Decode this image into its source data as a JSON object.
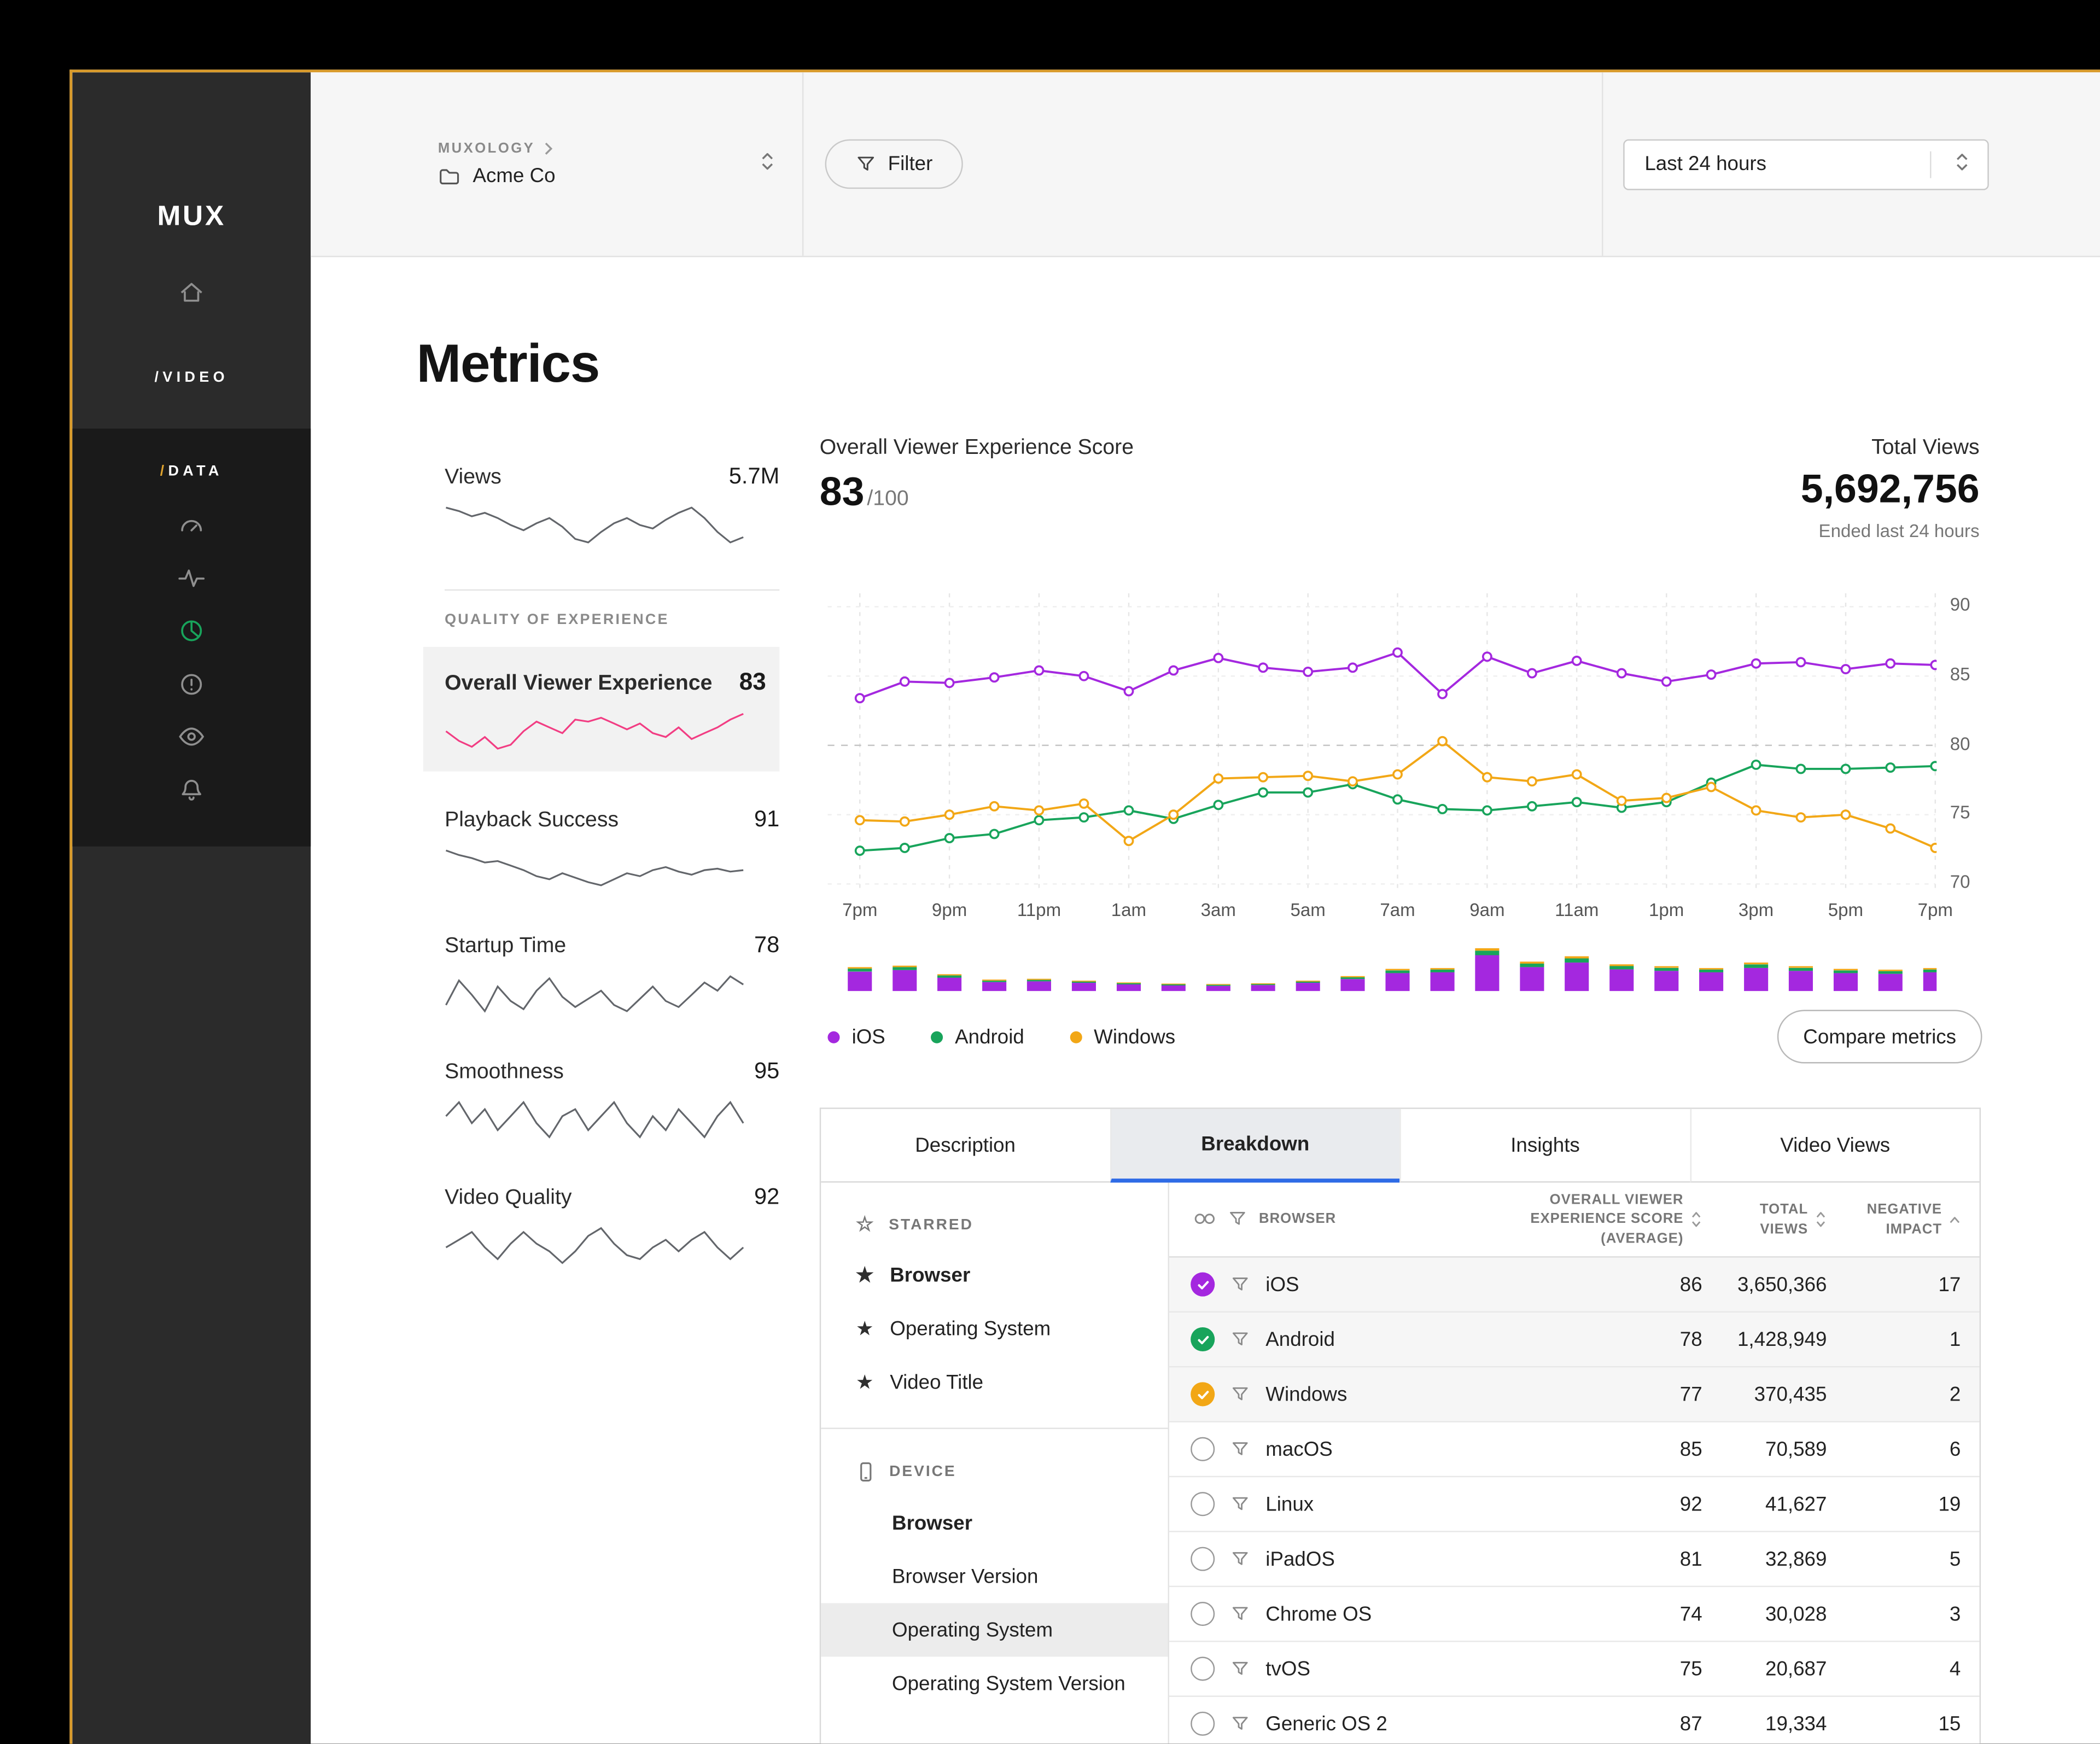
{
  "colors": {
    "orange": "#D99B2B",
    "purple": "#A428DF",
    "green": "#18A45B",
    "yellow": "#F2A716",
    "pink": "#F23D83",
    "blue": "#2E6BE6",
    "spark_gray": "#63666B"
  },
  "brand": {
    "logo": "MUX"
  },
  "sidebar": {
    "video": "/VIDEO",
    "data_slash": "/",
    "data_text": "DATA"
  },
  "header": {
    "breadcrumb": "MUXOLOGY",
    "org": "Acme Co",
    "filter": "Filter",
    "time_range": "Last 24 hours"
  },
  "page_title": "Metrics",
  "metrics": {
    "views": {
      "label": "Views",
      "value": "5.7M",
      "spark": [
        56,
        54,
        51,
        53,
        50,
        46,
        43,
        47,
        50,
        45,
        38,
        36,
        42,
        47,
        50,
        46,
        44,
        49,
        53,
        56,
        50,
        42,
        36,
        39
      ]
    },
    "qoe_header": "QUALITY OF EXPERIENCE",
    "items": [
      {
        "label": "Overall Viewer Experience",
        "value": "83",
        "selected": true,
        "spark": [
          38,
          33,
          30,
          35,
          29,
          31,
          38,
          43,
          40,
          37,
          44,
          43,
          45,
          42,
          39,
          42,
          37,
          35,
          40,
          34,
          37,
          40,
          44,
          47
        ]
      },
      {
        "label": "Playback Success",
        "value": "91",
        "spark": [
          54,
          51,
          49,
          46,
          47,
          44,
          41,
          37,
          35,
          39,
          36,
          33,
          31,
          35,
          39,
          37,
          41,
          43,
          40,
          38,
          41,
          42,
          40,
          41
        ]
      },
      {
        "label": "Startup Time",
        "value": "78",
        "spark": [
          32,
          44,
          37,
          29,
          41,
          34,
          30,
          39,
          45,
          36,
          31,
          35,
          39,
          32,
          29,
          35,
          41,
          34,
          31,
          37,
          43,
          39,
          46,
          42
        ]
      },
      {
        "label": "Smoothness",
        "value": "95",
        "spark": [
          45,
          47,
          44,
          46,
          43,
          45,
          47,
          44,
          42,
          45,
          46,
          43,
          45,
          47,
          44,
          42,
          45,
          43,
          46,
          44,
          42,
          45,
          47,
          44
        ]
      },
      {
        "label": "Video Quality",
        "value": "92",
        "spark": [
          41,
          43,
          45,
          41,
          38,
          42,
          45,
          42,
          40,
          37,
          40,
          44,
          46,
          42,
          39,
          38,
          41,
          43,
          40,
          43,
          45,
          41,
          38,
          41
        ]
      }
    ]
  },
  "chart_header": {
    "score_label": "Overall Viewer Experience Score",
    "score_value": "83",
    "score_denom": "/100",
    "total_views_label": "Total Views",
    "total_views_value": "5,692,756",
    "total_views_sub": "Ended last 24 hours"
  },
  "chart_data": {
    "type": "line",
    "title": "Overall Viewer Experience Score",
    "x_ticks": [
      "7pm",
      "9pm",
      "11pm",
      "1am",
      "3am",
      "5am",
      "7am",
      "9am",
      "11am",
      "1pm",
      "3pm",
      "5pm",
      "7pm"
    ],
    "ylim": [
      70,
      90
    ],
    "y_ticks": [
      90,
      85,
      80,
      75,
      70
    ],
    "reference_line": 80,
    "legend_position": "bottom",
    "series": [
      {
        "name": "iOS",
        "color": "#A428DF",
        "values": [
          83.4,
          84.6,
          84.5,
          84.9,
          85.4,
          85.0,
          83.9,
          85.4,
          86.3,
          85.6,
          85.3,
          85.6,
          86.7,
          83.7,
          86.4,
          85.2,
          86.1,
          85.2,
          84.6,
          85.1,
          85.9,
          86.0,
          85.5,
          85.9,
          85.8
        ]
      },
      {
        "name": "Android",
        "color": "#18A45B",
        "values": [
          72.4,
          72.6,
          73.3,
          73.6,
          74.6,
          74.8,
          75.3,
          74.7,
          75.7,
          76.6,
          76.6,
          77.2,
          76.1,
          75.4,
          75.3,
          75.6,
          75.9,
          75.5,
          75.9,
          77.3,
          78.6,
          78.3,
          78.3,
          78.4,
          78.5
        ]
      },
      {
        "name": "Windows",
        "color": "#F2A716",
        "values": [
          74.6,
          74.5,
          75.0,
          75.6,
          75.3,
          75.8,
          73.1,
          75.0,
          77.6,
          77.7,
          77.8,
          77.4,
          77.9,
          80.3,
          77.7,
          77.4,
          77.9,
          76.0,
          76.2,
          77.0,
          75.3,
          74.8,
          75.0,
          74.0,
          72.6
        ]
      }
    ],
    "volume_bars": {
      "order": [
        "iOS",
        "Android",
        "Windows"
      ],
      "values": [
        [
          13,
          2,
          1
        ],
        [
          14,
          2,
          1
        ],
        [
          9,
          1.5,
          0.8
        ],
        [
          6,
          1,
          0.7
        ],
        [
          6.5,
          1,
          0.7
        ],
        [
          5.5,
          0.9,
          0.6
        ],
        [
          4.5,
          0.8,
          0.5
        ],
        [
          3.8,
          0.7,
          0.5
        ],
        [
          3.5,
          0.7,
          0.5
        ],
        [
          4,
          0.7,
          0.5
        ],
        [
          5.5,
          0.9,
          0.6
        ],
        [
          8,
          1.2,
          0.8
        ],
        [
          12,
          1.8,
          1
        ],
        [
          12.5,
          1.9,
          1
        ],
        [
          24,
          3,
          1.6
        ],
        [
          16,
          2.4,
          1.3
        ],
        [
          19,
          2.8,
          1.4
        ],
        [
          14.5,
          2.2,
          1.2
        ],
        [
          13.5,
          2,
          1.1
        ],
        [
          12.5,
          1.9,
          1
        ],
        [
          15.5,
          2.3,
          1.2
        ],
        [
          13.5,
          2,
          1.1
        ],
        [
          12,
          1.8,
          1
        ],
        [
          11.5,
          1.8,
          1
        ],
        [
          12.5,
          1.9,
          1
        ]
      ]
    }
  },
  "legend": [
    {
      "label": "iOS",
      "color": "#A428DF"
    },
    {
      "label": "Android",
      "color": "#18A45B"
    },
    {
      "label": "Windows",
      "color": "#F2A716"
    }
  ],
  "compare_button": "Compare metrics",
  "tabs": [
    {
      "label": "Description"
    },
    {
      "label": "Breakdown",
      "active": true
    },
    {
      "label": "Insights"
    },
    {
      "label": "Video Views"
    }
  ],
  "breakdown": {
    "starred_header": "STARRED",
    "starred_items": [
      {
        "label": "Browser",
        "bold": true
      },
      {
        "label": "Operating System"
      },
      {
        "label": "Video Title"
      }
    ],
    "device_header": "DEVICE",
    "device_items": [
      {
        "label": "Browser",
        "bold": true
      },
      {
        "label": "Browser Version"
      },
      {
        "label": "Operating System",
        "selected": true
      },
      {
        "label": "Operating System Version"
      }
    ],
    "columns": [
      {
        "label": "BROWSER"
      },
      {
        "label": "OVERALL VIEWER EXPERIENCE SCORE (AVERAGE)"
      },
      {
        "label": "TOTAL VIEWS"
      },
      {
        "label": "NEGATIVE IMPACT"
      }
    ],
    "rows": [
      {
        "name": "iOS",
        "checked": true,
        "color": "#A428DF",
        "score": 86,
        "views": "3,650,366",
        "impact": 17
      },
      {
        "name": "Android",
        "checked": true,
        "color": "#18A45B",
        "score": 78,
        "views": "1,428,949",
        "impact": 1
      },
      {
        "name": "Windows",
        "checked": true,
        "color": "#F2A716",
        "score": 77,
        "views": "370,435",
        "impact": 2
      },
      {
        "name": "macOS",
        "checked": false,
        "score": 85,
        "views": "70,589",
        "impact": 6
      },
      {
        "name": "Linux",
        "checked": false,
        "score": 92,
        "views": "41,627",
        "impact": 19
      },
      {
        "name": "iPadOS",
        "checked": false,
        "score": 81,
        "views": "32,869",
        "impact": 5
      },
      {
        "name": "Chrome OS",
        "checked": false,
        "score": 74,
        "views": "30,028",
        "impact": 3
      },
      {
        "name": "tvOS",
        "checked": false,
        "score": 75,
        "views": "20,687",
        "impact": 4
      },
      {
        "name": "Generic OS 2",
        "checked": false,
        "score": 87,
        "views": "19,334",
        "impact": 15
      }
    ]
  }
}
